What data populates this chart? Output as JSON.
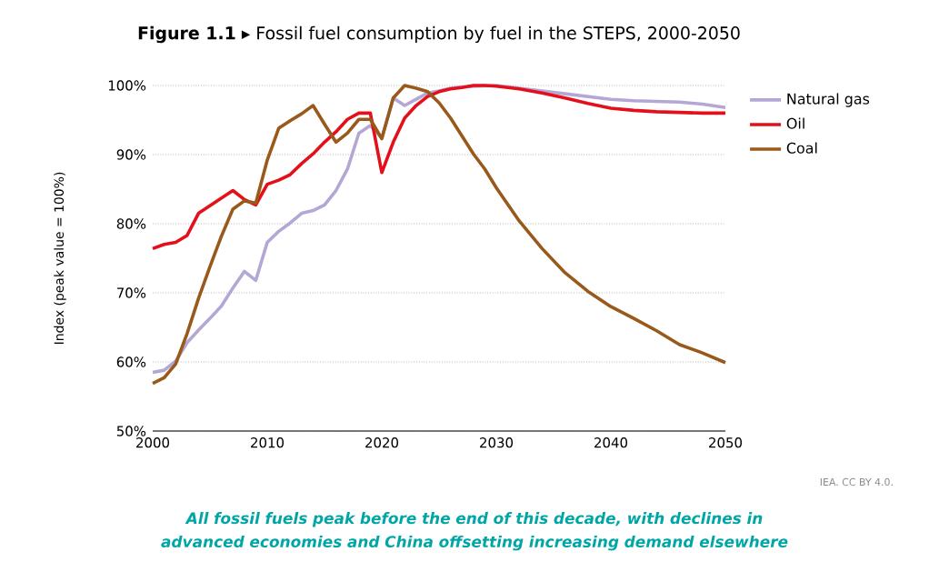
{
  "chart_data": {
    "type": "line",
    "title": "**Figure 1.1** ▸ Fossil fuel consumption by fuel in the STEPS, 2000-2050",
    "ylabel": "Index (peak value = 100%)",
    "x": [
      2000,
      2001,
      2002,
      2003,
      2004,
      2005,
      2006,
      2007,
      2008,
      2009,
      2010,
      2011,
      2012,
      2013,
      2014,
      2015,
      2016,
      2017,
      2018,
      2019,
      2020,
      2021,
      2022,
      2023,
      2024,
      2025,
      2026,
      2027,
      2028,
      2029,
      2030,
      2032,
      2034,
      2036,
      2038,
      2040,
      2042,
      2044,
      2046,
      2048,
      2050
    ],
    "series": [
      {
        "name": "Natural gas",
        "color": "#b4a7d6",
        "values": [
          58.5,
          58.8,
          60.1,
          62.8,
          64.6,
          66.3,
          68.1,
          70.7,
          73.1,
          71.8,
          77.3,
          78.9,
          80.1,
          81.5,
          81.9,
          82.7,
          84.8,
          87.9,
          93.1,
          94.2,
          92.4,
          98.2,
          97.1,
          98.0,
          98.9,
          99.2,
          99.6,
          99.8,
          null,
          null,
          100,
          99.6,
          99.2,
          98.8,
          98.4,
          98.0,
          97.8,
          97.7,
          97.6,
          97.3,
          96.8
        ]
      },
      {
        "name": "Oil",
        "color": "#e3101c",
        "values": [
          76.4,
          77.0,
          77.3,
          78.3,
          81.5,
          82.6,
          83.7,
          84.8,
          83.5,
          82.7,
          85.7,
          86.3,
          87.1,
          88.7,
          90.1,
          91.8,
          93.3,
          95.1,
          96.0,
          96.0,
          87.4,
          91.8,
          95.3,
          97.1,
          98.4,
          99.1,
          99.5,
          99.7,
          100,
          100,
          99.9,
          99.5,
          98.9,
          98.2,
          97.4,
          96.7,
          96.4,
          96.2,
          96.1,
          96.0,
          96.0
        ]
      },
      {
        "name": "Coal",
        "color": "#99591a",
        "values": [
          56.9,
          57.7,
          59.7,
          64.1,
          69.2,
          73.8,
          78.2,
          82.1,
          83.3,
          83.0,
          89.2,
          93.8,
          94.9,
          95.9,
          97.1,
          94.4,
          91.8,
          93.1,
          95.1,
          95.1,
          92.3,
          98.2,
          100,
          99.6,
          99.1,
          97.5,
          95.3,
          92.7,
          90.1,
          87.9,
          85.2,
          80.4,
          76.4,
          72.9,
          70.2,
          68.0,
          66.3,
          64.5,
          62.5,
          61.3,
          59.9
        ]
      }
    ],
    "xlim": [
      2000,
      2050
    ],
    "xticks": [
      2000,
      2010,
      2020,
      2030,
      2040,
      2050
    ],
    "ylim": [
      50,
      100
    ],
    "yticks": [
      {
        "value": 50,
        "label": "50%"
      },
      {
        "value": 60,
        "label": "60%"
      },
      {
        "value": 70,
        "label": "70%"
      },
      {
        "value": 80,
        "label": "80%"
      },
      {
        "value": 90,
        "label": "90%"
      },
      {
        "value": 100,
        "label": "100%"
      }
    ],
    "grid": "y",
    "legend": "right",
    "marker": "none",
    "line_style": "solid",
    "annotations": [
      "IEA. CC BY 4.0.",
      "All fossil fuels peak before the end of this decade, with declines in advanced economies and China offsetting increasing demand elsewhere"
    ]
  }
}
